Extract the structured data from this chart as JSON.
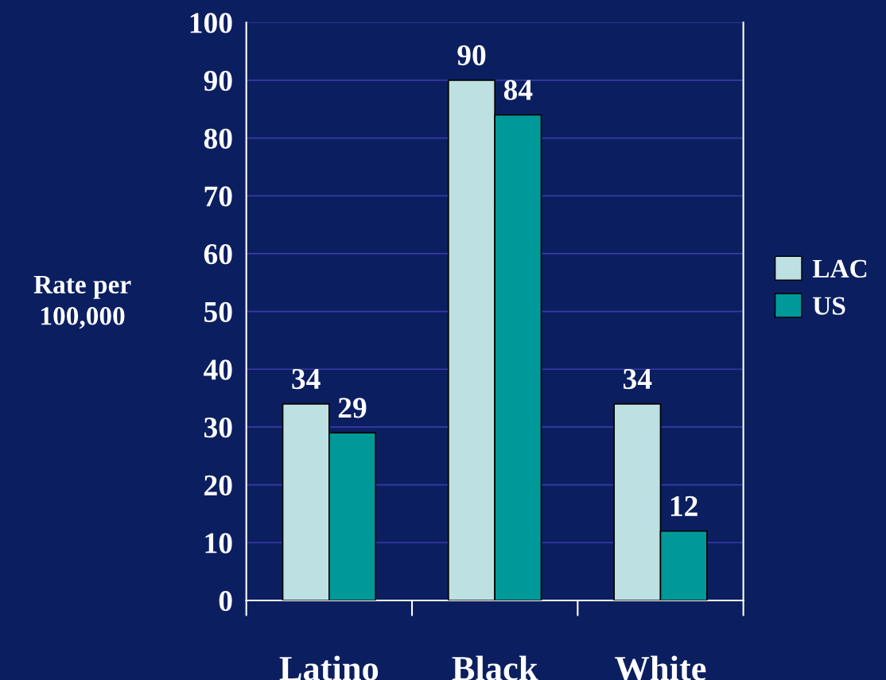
{
  "chart_data": {
    "type": "bar",
    "ylabel": "Rate per\n100,000",
    "categories": [
      "Latino",
      "Black",
      "White"
    ],
    "series": [
      {
        "name": "LAC",
        "color": "#bde0e2",
        "values": [
          34,
          90,
          34
        ]
      },
      {
        "name": "US",
        "color": "#009999",
        "values": [
          29,
          84,
          12
        ]
      }
    ],
    "ylim": [
      0,
      100
    ],
    "yticks": [
      0,
      10,
      20,
      30,
      40,
      50,
      60,
      70,
      80,
      90,
      100
    ],
    "grid": "y",
    "legend": "right",
    "data_labels": true
  }
}
